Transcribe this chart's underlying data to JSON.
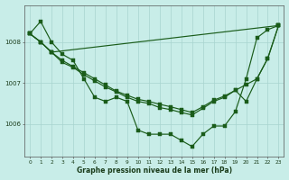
{
  "background_color": "#c8ede8",
  "grid_color": "#a8d4cf",
  "line_color": "#1a5c1a",
  "hours": [
    0,
    1,
    2,
    3,
    4,
    5,
    6,
    7,
    8,
    9,
    10,
    11,
    12,
    13,
    14,
    15,
    16,
    17,
    18,
    19,
    20,
    21,
    22,
    23
  ],
  "main_y": [
    1008.2,
    1008.5,
    1008.0,
    1007.7,
    1007.55,
    1007.1,
    1006.65,
    1006.55,
    1006.65,
    1006.55,
    1005.85,
    1005.75,
    1005.75,
    1005.75,
    1005.6,
    1005.45,
    1005.75,
    1005.95,
    1005.95,
    1006.3,
    1007.1,
    1008.1,
    1008.3,
    1008.4
  ],
  "line2_y": [
    1008.2,
    1008.0,
    1007.75,
    1007.55,
    1007.4,
    1007.25,
    1007.1,
    1006.95,
    1006.8,
    1006.7,
    1006.6,
    1006.55,
    1006.48,
    1006.42,
    1006.35,
    1006.28,
    1006.42,
    1006.58,
    1006.68,
    1006.82,
    1006.55,
    1007.1,
    1007.6,
    1008.4
  ],
  "line3_y": [
    1008.2,
    1008.0,
    1007.75,
    1007.5,
    1007.38,
    1007.2,
    1007.05,
    1006.9,
    1006.78,
    1006.65,
    1006.55,
    1006.5,
    1006.4,
    1006.35,
    1006.28,
    1006.22,
    1006.38,
    1006.55,
    1006.65,
    1006.82,
    1006.96,
    1007.1,
    1007.6,
    1008.4
  ],
  "line4_x": [
    0,
    1,
    2,
    23
  ],
  "line4_y": [
    1008.2,
    1008.0,
    1007.75,
    1008.4
  ],
  "ylim": [
    1005.2,
    1008.9
  ],
  "yticks": [
    1006.0,
    1007.0,
    1008.0
  ],
  "xlabel": "Graphe pression niveau de la mer (hPa)"
}
